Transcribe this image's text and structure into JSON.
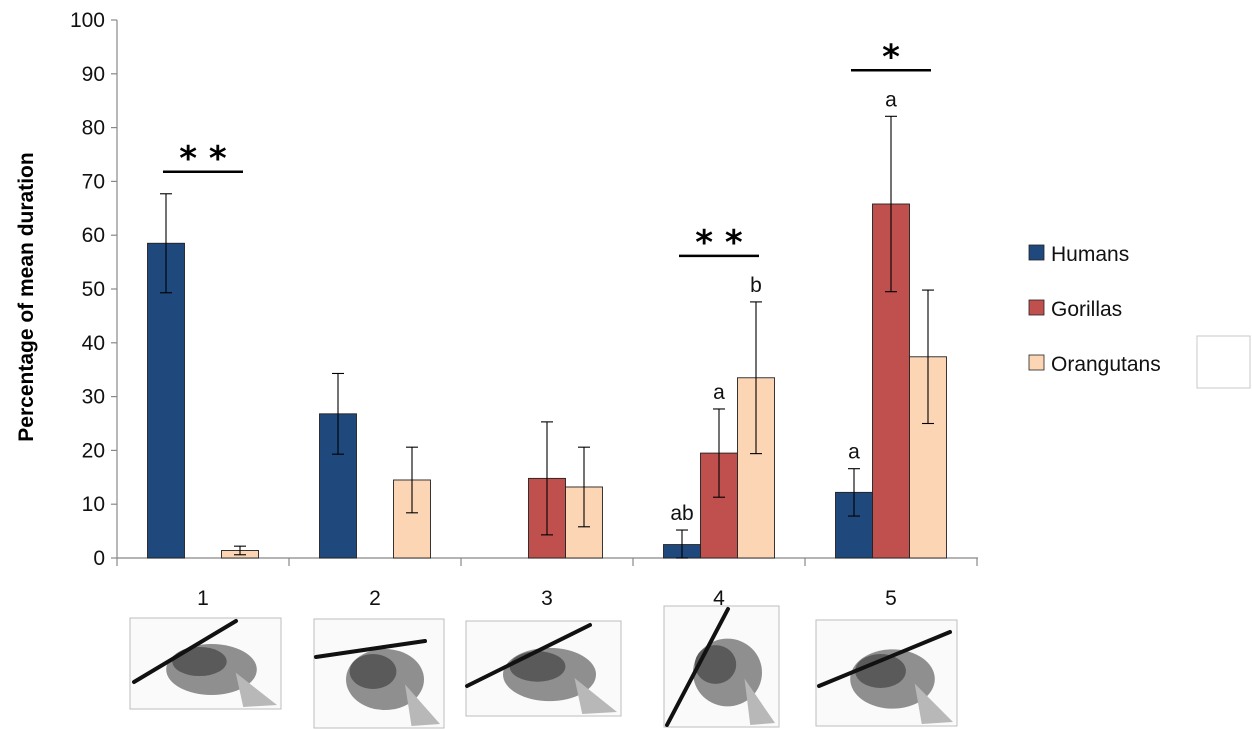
{
  "chart_data": {
    "type": "bar",
    "title": "",
    "xlabel": "",
    "ylabel": "Percentage of mean duration",
    "ylim": [
      0,
      100
    ],
    "yticks": [
      0,
      10,
      20,
      30,
      40,
      50,
      60,
      70,
      80,
      90,
      100
    ],
    "categories": [
      "1",
      "2",
      "3",
      "4",
      "5"
    ],
    "series": [
      {
        "name": "Humans",
        "color": "#1f497d",
        "values": [
          58.5,
          26.8,
          null,
          2.5,
          12.2
        ],
        "errors": [
          9.2,
          7.5,
          null,
          2.7,
          4.4
        ]
      },
      {
        "name": "Gorillas",
        "color": "#c0504d",
        "values": [
          null,
          null,
          14.8,
          19.5,
          65.8
        ],
        "errors": [
          null,
          null,
          10.5,
          8.2,
          16.3
        ]
      },
      {
        "name": "Orangutans",
        "color": "#fcd5b5",
        "values": [
          1.4,
          14.5,
          13.2,
          33.5,
          37.4
        ],
        "errors": [
          0.8,
          6.1,
          7.4,
          14.1,
          12.4
        ]
      }
    ],
    "bar_labels": [
      {
        "category": "4",
        "series": "Humans",
        "text": "ab"
      },
      {
        "category": "4",
        "series": "Gorillas",
        "text": "a"
      },
      {
        "category": "4",
        "series": "Orangutans",
        "text": "b"
      },
      {
        "category": "5",
        "series": "Humans",
        "text": "a"
      },
      {
        "category": "5",
        "series": "Gorillas",
        "text": "a"
      }
    ],
    "significance": [
      {
        "category": "1",
        "text": "**"
      },
      {
        "category": "4",
        "text": "**"
      },
      {
        "category": "5",
        "text": "*"
      }
    ],
    "legend_position": "right",
    "grid": false,
    "category_images": [
      "hand-grip-1",
      "hand-grip-2",
      "hand-grip-3",
      "hand-grip-4",
      "hand-grip-5"
    ]
  }
}
